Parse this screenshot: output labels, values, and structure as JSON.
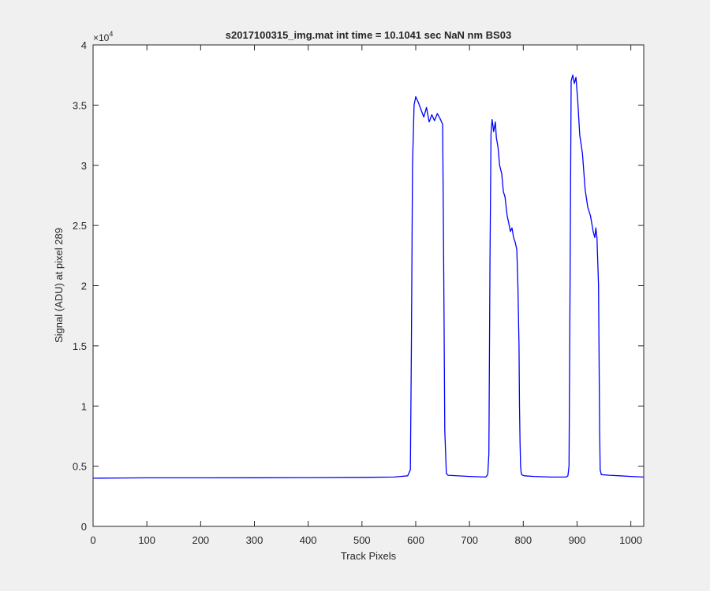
{
  "chart_data": {
    "type": "line",
    "title": "s2017100315_img.mat int time = 10.1041 sec  NaN nm BS03",
    "xlabel": "Track Pixels",
    "ylabel": "Signal (ADU) at pixel 289",
    "xlim": [
      0,
      1024
    ],
    "ylim": [
      0,
      40000
    ],
    "xticks": [
      0,
      100,
      200,
      300,
      400,
      500,
      600,
      700,
      800,
      900,
      1000
    ],
    "xtick_labels": [
      "0",
      "100",
      "200",
      "300",
      "400",
      "500",
      "600",
      "700",
      "800",
      "900",
      "1000"
    ],
    "yticks": [
      0,
      5000,
      10000,
      15000,
      20000,
      25000,
      30000,
      35000,
      40000
    ],
    "ytick_labels": [
      "0",
      "0.5",
      "1",
      "1.5",
      "2",
      "2.5",
      "3",
      "3.5",
      "4"
    ],
    "y_exponent_base": "×10",
    "y_exponent_power": "4",
    "grid": false,
    "box": true,
    "series": [
      {
        "color": "#0000ff",
        "x": [
          0,
          50,
          100,
          200,
          300,
          400,
          500,
          560,
          585,
          590,
          592,
          594,
          597,
          600,
          605,
          610,
          615,
          620,
          625,
          630,
          635,
          640,
          645,
          650,
          652,
          654,
          657,
          660,
          700,
          730,
          734,
          736,
          738,
          740,
          742,
          745,
          748,
          750,
          753,
          756,
          760,
          763,
          766,
          770,
          773,
          776,
          779,
          782,
          785,
          788,
          790,
          792,
          793,
          794,
          795,
          796,
          797,
          799,
          802,
          820,
          850,
          880,
          883,
          885,
          887,
          889,
          892,
          895,
          898,
          901,
          905,
          910,
          915,
          920,
          925,
          930,
          933,
          935,
          937,
          940,
          941,
          942,
          943,
          945,
          960,
          980,
          1000,
          1024
        ],
        "y": [
          4000,
          4020,
          4030,
          4030,
          4040,
          4050,
          4070,
          4100,
          4200,
          4700,
          15000,
          30000,
          35000,
          35700,
          35200,
          34600,
          34000,
          34800,
          33600,
          34200,
          33700,
          34300,
          33900,
          33400,
          22000,
          8000,
          4400,
          4250,
          4150,
          4100,
          4300,
          6000,
          22000,
          32600,
          33800,
          32800,
          33600,
          32300,
          31500,
          30000,
          29300,
          27800,
          27400,
          25800,
          25200,
          24500,
          24800,
          24000,
          23600,
          23000,
          20000,
          15000,
          10000,
          7000,
          5000,
          4500,
          4300,
          4250,
          4200,
          4150,
          4100,
          4100,
          4200,
          5000,
          20000,
          37000,
          37500,
          36800,
          37300,
          35500,
          32500,
          31000,
          28000,
          26500,
          25800,
          24500,
          24000,
          24800,
          24000,
          20000,
          14000,
          8000,
          4700,
          4300,
          4250,
          4200,
          4150,
          4100
        ]
      }
    ]
  }
}
